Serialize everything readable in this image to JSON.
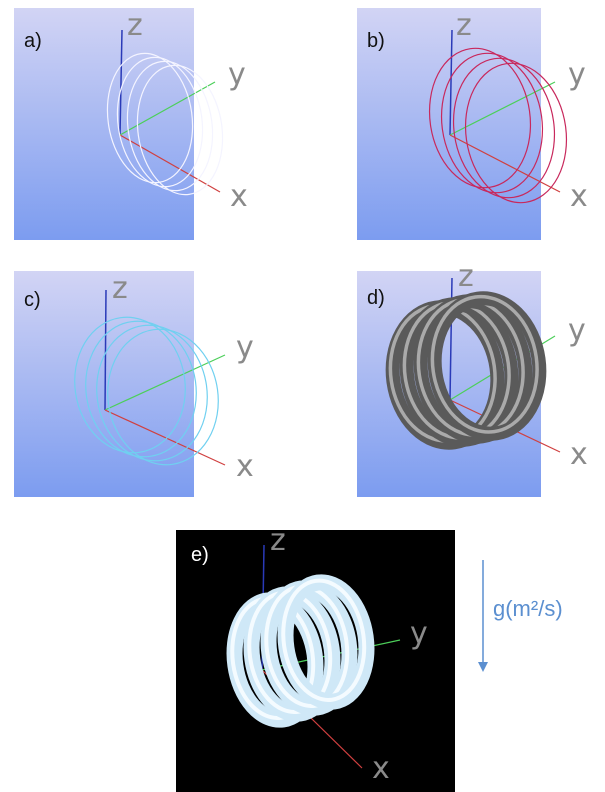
{
  "panels": [
    {
      "label": "a)",
      "axes": {
        "z": "z",
        "y": "y",
        "x": "x"
      }
    },
    {
      "label": "b)",
      "axes": {
        "z": "z",
        "y": "y",
        "x": "x"
      }
    },
    {
      "label": "c)",
      "axes": {
        "z": "z",
        "y": "y",
        "x": "x"
      }
    },
    {
      "label": "d)",
      "axes": {
        "z": "z",
        "y": "y",
        "x": "x"
      }
    },
    {
      "label": "e)",
      "axes": {
        "z": "z",
        "y": "y",
        "x": "x"
      }
    }
  ],
  "annotation": "g(m²/s)"
}
